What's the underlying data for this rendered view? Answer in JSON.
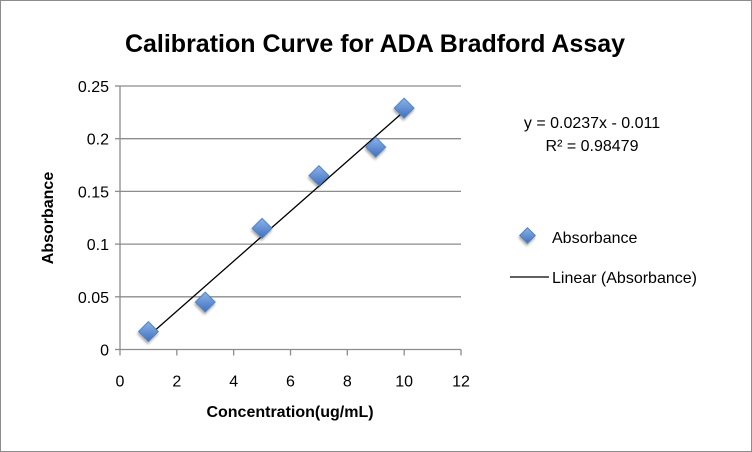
{
  "chart_data": {
    "type": "scatter",
    "title": "Calibration Curve for ADA Bradford Assay",
    "xlabel": "Concentration(ug/mL)",
    "ylabel": "Absorbance",
    "xlim": [
      0,
      12
    ],
    "ylim": [
      0,
      0.25
    ],
    "xticks": [
      "0",
      "2",
      "4",
      "6",
      "8",
      "10",
      "12"
    ],
    "yticks": [
      "0",
      "0.05",
      "0.1",
      "0.15",
      "0.2",
      "0.25"
    ],
    "grid": "horizontal",
    "series": [
      {
        "name": "Absorbance",
        "x": [
          1,
          3,
          5,
          7,
          9,
          10
        ],
        "y": [
          0.017,
          0.045,
          0.115,
          0.165,
          0.192,
          0.229
        ],
        "color": "#4f81bd"
      }
    ],
    "trendline": {
      "name": "Linear (Absorbance)",
      "slope": 0.0237,
      "intercept": -0.011,
      "x_range": [
        1,
        10
      ],
      "color": "#000000"
    },
    "annotations": [
      "y = 0.0237x - 0.011",
      "R² = 0.98479"
    ],
    "legend": {
      "placement": "right",
      "entries": [
        "Absorbance",
        "Linear (Absorbance)"
      ]
    }
  }
}
